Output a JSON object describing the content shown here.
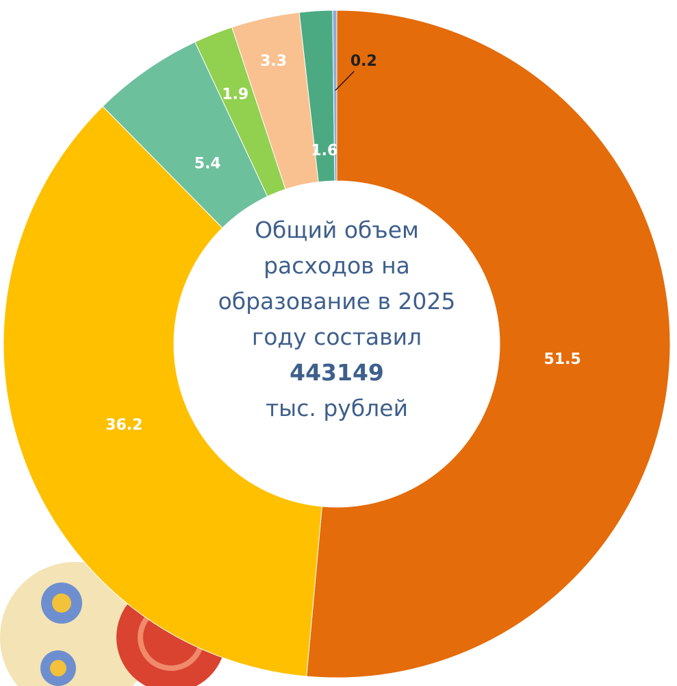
{
  "chart_data": {
    "type": "donut",
    "values": [
      51.5,
      36.2,
      5.4,
      1.9,
      3.3,
      1.6,
      0.2
    ],
    "colors": [
      "#E46C0A",
      "#FFC000",
      "#6DC09C",
      "#92D050",
      "#F9C18F",
      "#4BAA82",
      "#8EA9DB"
    ],
    "center_text": "Общий объем расходов на образование в 2025 году составил",
    "total": 443149,
    "unit": "тыс. рублей"
  }
}
